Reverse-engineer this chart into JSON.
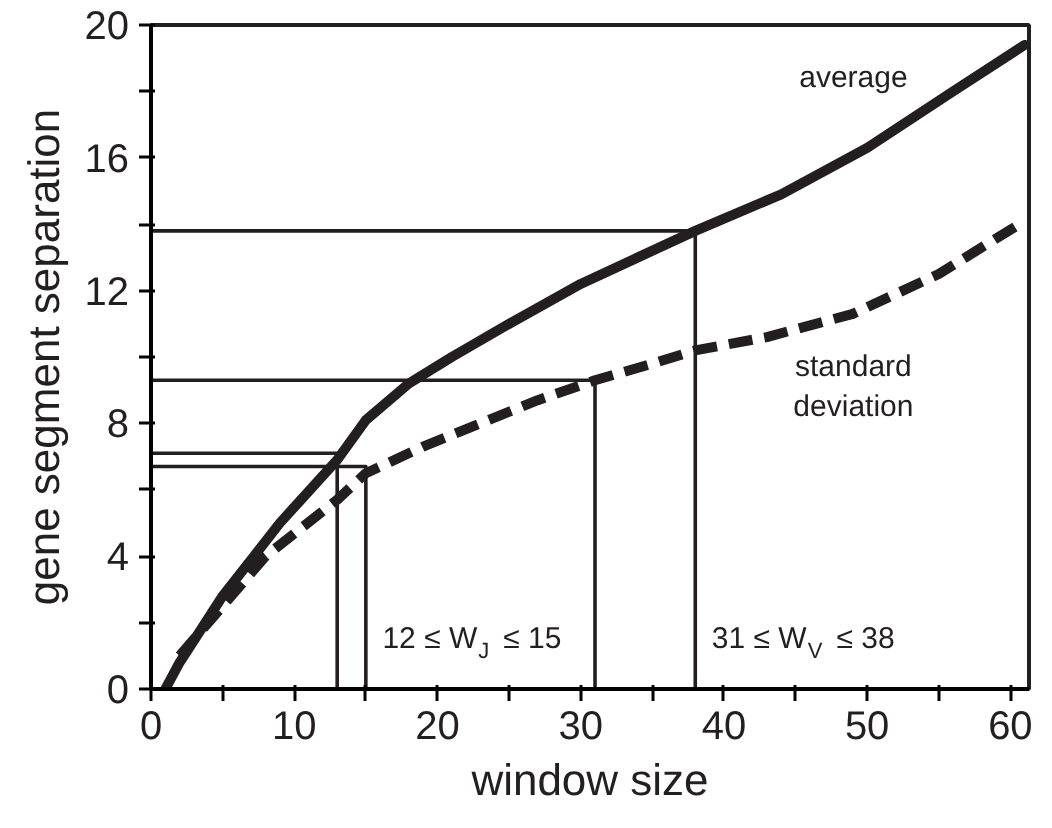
{
  "chart_data": {
    "type": "line",
    "xlabel": "window size",
    "ylabel": "gene segment separation",
    "xlim": [
      0,
      61.3
    ],
    "ylim": [
      0,
      20
    ],
    "xticks": [
      0,
      {
        "value": 5,
        "label": null
      },
      10,
      {
        "value": 15,
        "label": null
      },
      20,
      {
        "value": 25,
        "label": null
      },
      30,
      {
        "value": 35,
        "label": null
      },
      40,
      {
        "value": 45,
        "label": null
      },
      50,
      {
        "value": 55,
        "label": null
      },
      60
    ],
    "yticks": [
      0,
      {
        "value": 2,
        "label": null
      },
      4,
      {
        "value": 6,
        "label": null
      },
      8,
      {
        "value": 10,
        "label": null
      },
      12,
      {
        "value": 14,
        "label": null
      },
      16,
      {
        "value": 18,
        "label": null
      },
      20
    ],
    "grid": false,
    "series": [
      {
        "name": "average",
        "color": "#231f20",
        "line_style": "solid",
        "x": [
          1,
          2,
          5,
          9,
          13,
          15,
          18,
          21,
          25,
          30,
          34,
          38,
          44,
          50,
          56,
          61
        ],
        "values": [
          0,
          0.8,
          2.8,
          5,
          6.9,
          8.1,
          9.2,
          10,
          11,
          12.2,
          13,
          13.8,
          14.9,
          16.3,
          18,
          19.4
        ]
      },
      {
        "name": "standard deviation",
        "color": "#231f20",
        "line_style": "dashed",
        "x": [
          2,
          5,
          8,
          13,
          15,
          19,
          23,
          27,
          31,
          35,
          38,
          43,
          49,
          55,
          61
        ],
        "values": [
          1,
          2.5,
          4,
          5.7,
          6.5,
          7.3,
          8,
          8.7,
          9.3,
          9.8,
          10.2,
          10.6,
          11.3,
          12.5,
          14.1
        ]
      },
      {
        "color": "#231f20",
        "line_style": "solid",
        "x": [
          0,
          13,
          13
        ],
        "values": [
          7.1,
          7.1,
          0
        ]
      },
      {
        "color": "#231f20",
        "line_style": "solid",
        "x": [
          0,
          15,
          15
        ],
        "values": [
          6.7,
          6.7,
          0
        ]
      },
      {
        "color": "#231f20",
        "line_style": "solid",
        "x": [
          0,
          31,
          31
        ],
        "values": [
          9.3,
          9.3,
          0
        ]
      },
      {
        "color": "#231f20",
        "line_style": "solid",
        "x": [
          0,
          38,
          38
        ],
        "values": [
          13.8,
          13.8,
          0
        ]
      }
    ],
    "annotations": [
      {
        "text": "12 ≤ W$_{J}$ ≤ 15",
        "x": 15.6,
        "y": 1
      },
      {
        "text": "31 ≤ W$_{V}$ ≤ 38",
        "x": 38.6,
        "y": 1
      }
    ]
  }
}
